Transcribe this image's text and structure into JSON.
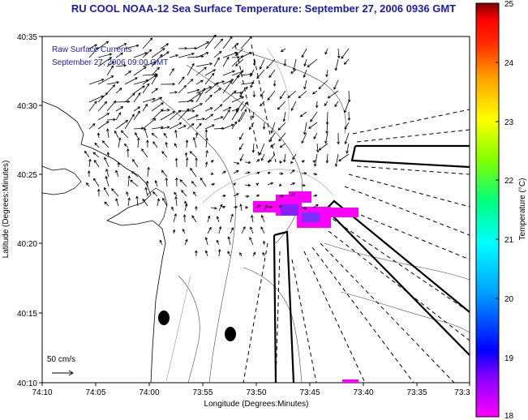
{
  "title": "RU COOL  NOAA-12  Sea Surface Temperature:  September 27, 2006 0936 GMT",
  "legend": {
    "line1": "Raw Surface Currents",
    "line2": "September 27, 2006 09:00 GMT"
  },
  "scale_label": "50 cm/s",
  "x_axis": {
    "label": "Longitude (Degrees:Minutes)",
    "ticks": [
      "74:10",
      "74:05",
      "74:00",
      "73:55",
      "73:50",
      "73:45",
      "73:40",
      "73:35",
      "73:3"
    ]
  },
  "y_axis": {
    "label": "Latitude (Degrees:Minutes)",
    "ticks": [
      "40:35",
      "40:30",
      "40:25",
      "40:20",
      "40:15",
      "40:10"
    ]
  },
  "colorbar": {
    "label": "Temperature (°C)",
    "ticks": [
      "25",
      "24",
      "23",
      "22",
      "21",
      "20",
      "19",
      "18"
    ],
    "min": 18,
    "max": 25,
    "colors": [
      "#ff00ff",
      "#8000ff",
      "#0000ff",
      "#00a0ff",
      "#00ffff",
      "#00ff80",
      "#80ff00",
      "#ffff00",
      "#ffa000",
      "#ff4000",
      "#ff0000",
      "#800000"
    ]
  },
  "colors": {
    "title": "#1a1ab4",
    "sst_patch": "#ff00ff",
    "sst_core": "#8000ff"
  }
}
